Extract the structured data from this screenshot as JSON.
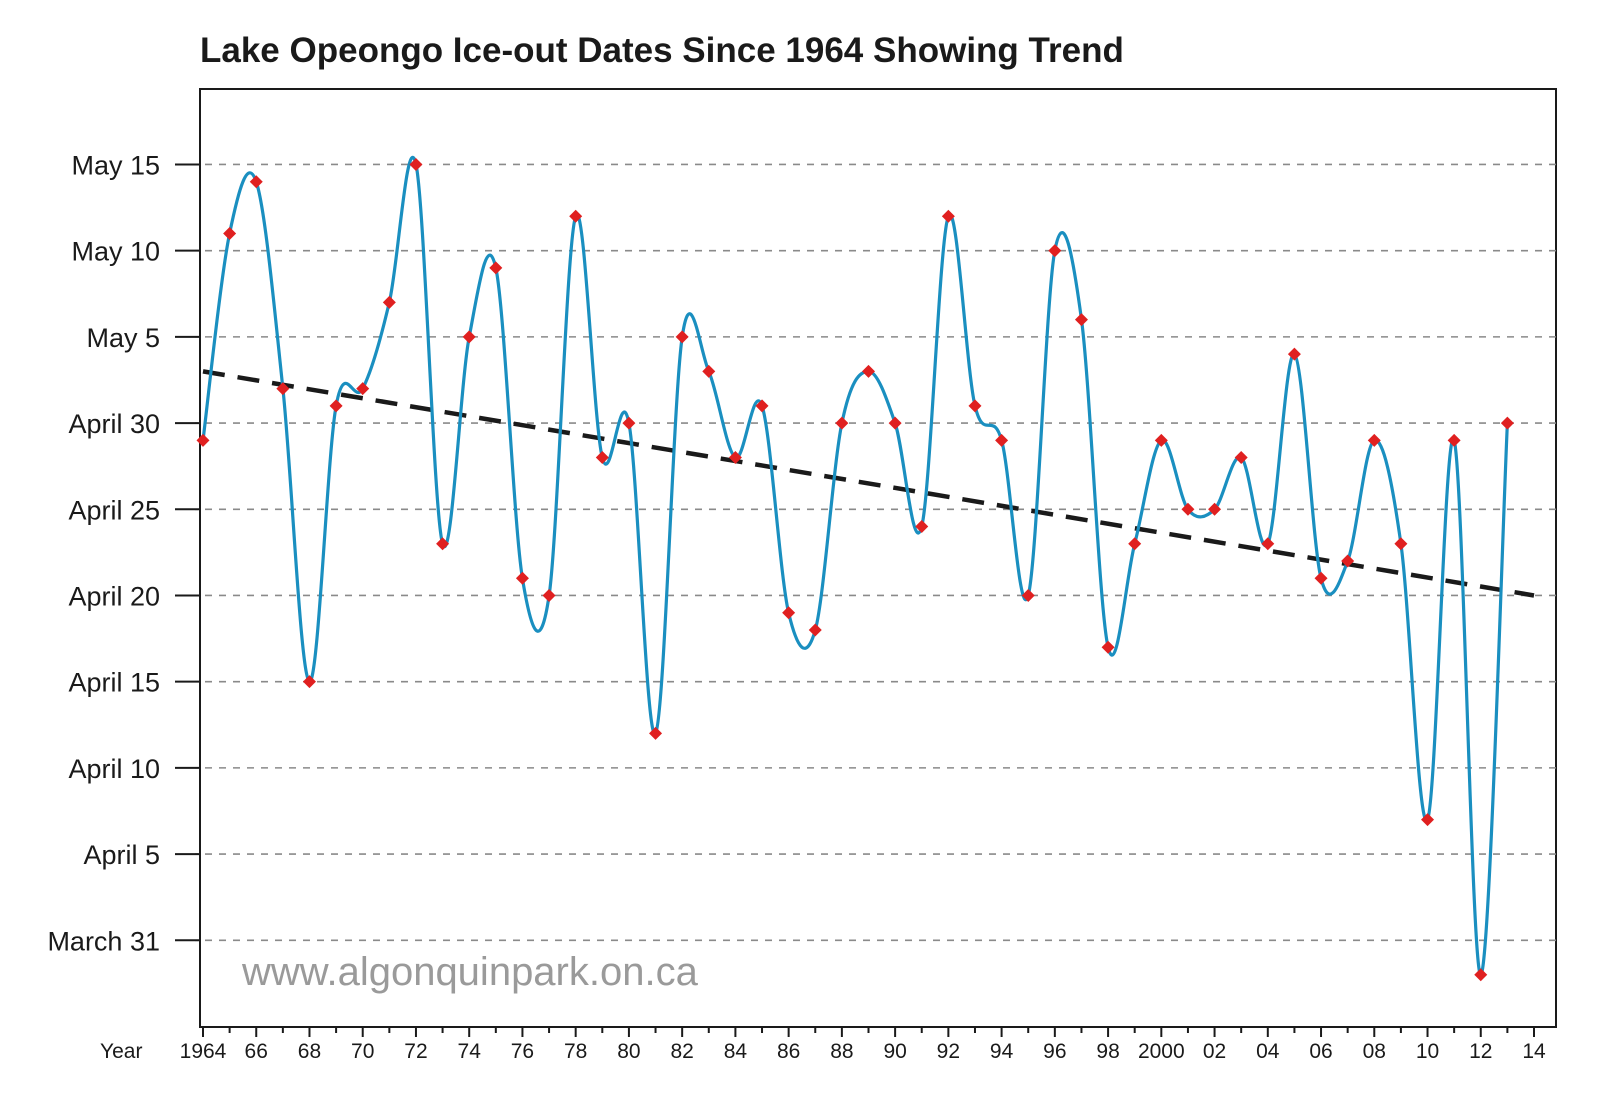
{
  "chart_data": {
    "type": "line",
    "title": "Lake Opeongo Ice-out Dates Since 1964 Showing Trend",
    "xlabel": "Year",
    "ylabel": "",
    "x_range": [
      1964,
      2014
    ],
    "y_range": [
      "March 28",
      "May 17"
    ],
    "x_tick_labels": [
      {
        "year": 1964,
        "label": "1964"
      },
      {
        "year": 1966,
        "label": "66"
      },
      {
        "year": 1968,
        "label": "68"
      },
      {
        "year": 1970,
        "label": "70"
      },
      {
        "year": 1972,
        "label": "72"
      },
      {
        "year": 1974,
        "label": "74"
      },
      {
        "year": 1976,
        "label": "76"
      },
      {
        "year": 1978,
        "label": "78"
      },
      {
        "year": 1980,
        "label": "80"
      },
      {
        "year": 1982,
        "label": "82"
      },
      {
        "year": 1984,
        "label": "84"
      },
      {
        "year": 1986,
        "label": "86"
      },
      {
        "year": 1988,
        "label": "88"
      },
      {
        "year": 1990,
        "label": "90"
      },
      {
        "year": 1992,
        "label": "92"
      },
      {
        "year": 1994,
        "label": "94"
      },
      {
        "year": 1996,
        "label": "96"
      },
      {
        "year": 1998,
        "label": "98"
      },
      {
        "year": 2000,
        "label": "2000"
      },
      {
        "year": 2002,
        "label": "02"
      },
      {
        "year": 2004,
        "label": "04"
      },
      {
        "year": 2006,
        "label": "06"
      },
      {
        "year": 2008,
        "label": "08"
      },
      {
        "year": 2010,
        "label": "10"
      },
      {
        "year": 2012,
        "label": "12"
      },
      {
        "year": 2014,
        "label": "14"
      }
    ],
    "y_tick_labels": [
      {
        "date": "March 31",
        "label": "March 31"
      },
      {
        "date": "April 5",
        "label": "April 5"
      },
      {
        "date": "April 10",
        "label": "April 10"
      },
      {
        "date": "April 15",
        "label": "April 15"
      },
      {
        "date": "April 20",
        "label": "April 20"
      },
      {
        "date": "April 25",
        "label": "April 25"
      },
      {
        "date": "April 30",
        "label": "April 30"
      },
      {
        "date": "May 5",
        "label": "May 5"
      },
      {
        "date": "May 10",
        "label": "May 10"
      },
      {
        "date": "May 15",
        "label": "May 15"
      }
    ],
    "grid": "horizontal dashed",
    "series": [
      {
        "color": "#1a8fc0",
        "marker_color": "#e02020",
        "points": [
          {
            "year": 1964,
            "date": "April 29"
          },
          {
            "year": 1965,
            "date": "May 11"
          },
          {
            "year": 1966,
            "date": "May 14"
          },
          {
            "year": 1967,
            "date": "May 2"
          },
          {
            "year": 1968,
            "date": "April 15"
          },
          {
            "year": 1969,
            "date": "May 1"
          },
          {
            "year": 1970,
            "date": "May 2"
          },
          {
            "year": 1971,
            "date": "May 7"
          },
          {
            "year": 1972,
            "date": "May 15"
          },
          {
            "year": 1973,
            "date": "April 23"
          },
          {
            "year": 1974,
            "date": "May 5"
          },
          {
            "year": 1975,
            "date": "May 9"
          },
          {
            "year": 1976,
            "date": "April 21"
          },
          {
            "year": 1977,
            "date": "April 20"
          },
          {
            "year": 1978,
            "date": "May 12"
          },
          {
            "year": 1979,
            "date": "April 28"
          },
          {
            "year": 1980,
            "date": "April 30"
          },
          {
            "year": 1981,
            "date": "April 12"
          },
          {
            "year": 1982,
            "date": "May 5"
          },
          {
            "year": 1983,
            "date": "May 3"
          },
          {
            "year": 1984,
            "date": "April 28"
          },
          {
            "year": 1985,
            "date": "May 1"
          },
          {
            "year": 1986,
            "date": "April 19"
          },
          {
            "year": 1987,
            "date": "April 18"
          },
          {
            "year": 1988,
            "date": "April 30"
          },
          {
            "year": 1989,
            "date": "May 3"
          },
          {
            "year": 1990,
            "date": "April 30"
          },
          {
            "year": 1991,
            "date": "April 24"
          },
          {
            "year": 1992,
            "date": "May 12"
          },
          {
            "year": 1993,
            "date": "May 1"
          },
          {
            "year": 1994,
            "date": "April 29"
          },
          {
            "year": 1995,
            "date": "April 20"
          },
          {
            "year": 1996,
            "date": "May 10"
          },
          {
            "year": 1997,
            "date": "May 6"
          },
          {
            "year": 1998,
            "date": "April 17"
          },
          {
            "year": 1999,
            "date": "April 23"
          },
          {
            "year": 2000,
            "date": "April 29"
          },
          {
            "year": 2001,
            "date": "April 25"
          },
          {
            "year": 2002,
            "date": "April 25"
          },
          {
            "year": 2003,
            "date": "April 28"
          },
          {
            "year": 2004,
            "date": "April 23"
          },
          {
            "year": 2005,
            "date": "May 4"
          },
          {
            "year": 2006,
            "date": "April 21"
          },
          {
            "year": 2007,
            "date": "April 22"
          },
          {
            "year": 2008,
            "date": "April 29"
          },
          {
            "year": 2009,
            "date": "April 23"
          },
          {
            "year": 2010,
            "date": "April 7"
          },
          {
            "year": 2011,
            "date": "April 29"
          },
          {
            "year": 2012,
            "date": "March 29"
          },
          {
            "year": 2013,
            "date": "April 30"
          }
        ]
      }
    ],
    "trend_line": {
      "style": "dashed",
      "color": "#1a1a1a",
      "start": {
        "year": 1964,
        "date": "May 3"
      },
      "end": {
        "year": 2014,
        "date": "April 20"
      }
    },
    "watermark": "www.algonquinpark.on.ca"
  }
}
